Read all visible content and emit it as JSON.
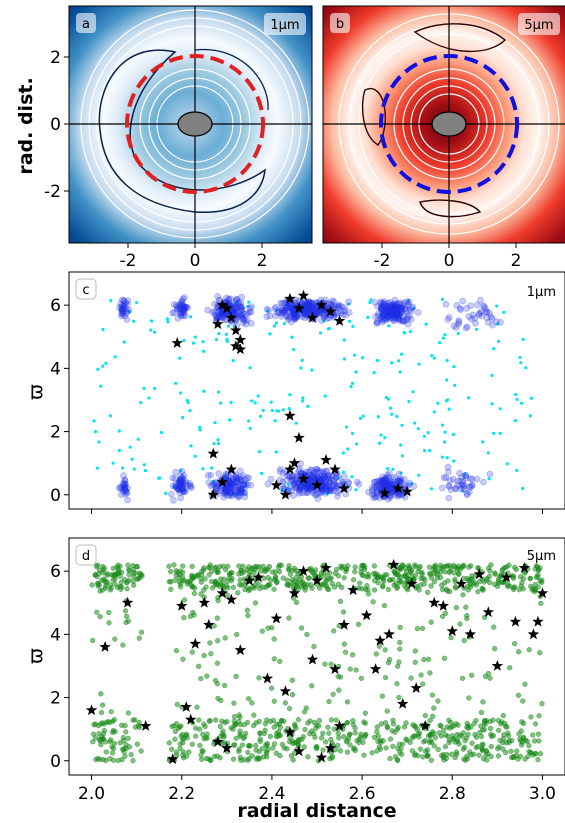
{
  "chart_data": [
    {
      "type": "heatmap",
      "panel_label": "a",
      "corner_label": "1μm",
      "colormap": "Blues",
      "ylabel": "rad. dist.",
      "xticks": [
        -2,
        0,
        2
      ],
      "yticks": [
        -2,
        0,
        2
      ],
      "xlim": [
        -3.8,
        3.8
      ],
      "ylim": [
        -3.5,
        3.5
      ],
      "dashed_circle": {
        "radius": 2.05,
        "color": "#e02020"
      },
      "center_ellipse_color": "#808080"
    },
    {
      "type": "heatmap",
      "panel_label": "b",
      "corner_label": "5μm",
      "colormap": "Reds",
      "xticks": [
        -2,
        0,
        2
      ],
      "xlim": [
        -3.8,
        3.8
      ],
      "ylim": [
        -3.5,
        3.5
      ],
      "dashed_circle": {
        "radius": 2.05,
        "color": "#1010e0"
      },
      "center_ellipse_color": "#808080"
    },
    {
      "type": "scatter",
      "panel_label": "c",
      "corner_label": "1μm",
      "ylabel": "ϖ",
      "xlim": [
        1.95,
        3.05
      ],
      "ylim": [
        -0.45,
        7.05
      ],
      "xticks": [
        2.0,
        2.2,
        2.4,
        2.6,
        2.8,
        3.0
      ],
      "yticks": [
        0,
        2,
        4,
        6
      ],
      "show_xtick_labels": false,
      "colors": {
        "dense": "#1f2ee8",
        "sparse": "#00e5ee",
        "stars": "#000000"
      },
      "stars": [
        [
          2.28,
          5.4
        ],
        [
          2.3,
          5.9
        ],
        [
          2.31,
          5.6
        ],
        [
          2.32,
          5.2
        ],
        [
          2.33,
          4.9
        ],
        [
          2.33,
          4.6
        ],
        [
          2.32,
          4.7
        ],
        [
          2.19,
          4.8
        ],
        [
          2.29,
          6.0
        ],
        [
          2.44,
          6.2
        ],
        [
          2.47,
          6.3
        ],
        [
          2.51,
          6.0
        ],
        [
          2.53,
          5.8
        ],
        [
          2.49,
          5.6
        ],
        [
          2.55,
          5.5
        ],
        [
          2.46,
          5.9
        ],
        [
          2.44,
          2.5
        ],
        [
          2.46,
          1.8
        ],
        [
          2.27,
          1.3
        ],
        [
          2.31,
          0.8
        ],
        [
          2.29,
          0.4
        ],
        [
          2.27,
          0.0
        ],
        [
          2.41,
          0.3
        ],
        [
          2.43,
          0.0
        ],
        [
          2.44,
          0.8
        ],
        [
          2.45,
          1.0
        ],
        [
          2.47,
          0.5
        ],
        [
          2.5,
          0.3
        ],
        [
          2.52,
          1.1
        ],
        [
          2.54,
          0.8
        ],
        [
          2.56,
          0.2
        ],
        [
          2.65,
          0.05
        ],
        [
          2.68,
          0.2
        ],
        [
          2.7,
          0.1
        ]
      ]
    },
    {
      "type": "scatter",
      "panel_label": "d",
      "corner_label": "5μm",
      "ylabel": "ϖ",
      "xlabel": "radial distance",
      "xlim": [
        1.95,
        3.05
      ],
      "ylim": [
        -0.45,
        7.05
      ],
      "xticks": [
        2.0,
        2.2,
        2.4,
        2.6,
        2.8,
        3.0
      ],
      "yticks": [
        0,
        2,
        4,
        6
      ],
      "colors": {
        "points": "#1a8a1a",
        "stars": "#000000"
      },
      "stars": [
        [
          2.0,
          1.6
        ],
        [
          2.03,
          3.6
        ],
        [
          2.08,
          5.0
        ],
        [
          2.12,
          1.1
        ],
        [
          2.18,
          0.05
        ],
        [
          2.2,
          4.9
        ],
        [
          2.21,
          1.7
        ],
        [
          2.22,
          1.3
        ],
        [
          2.23,
          3.7
        ],
        [
          2.25,
          5.0
        ],
        [
          2.26,
          4.3
        ],
        [
          2.28,
          0.6
        ],
        [
          2.29,
          5.3
        ],
        [
          2.3,
          0.4
        ],
        [
          2.31,
          5.1
        ],
        [
          2.33,
          3.5
        ],
        [
          2.35,
          5.7
        ],
        [
          2.37,
          5.8
        ],
        [
          2.39,
          2.6
        ],
        [
          2.41,
          4.5
        ],
        [
          2.43,
          2.2
        ],
        [
          2.44,
          0.9
        ],
        [
          2.45,
          5.3
        ],
        [
          2.46,
          0.3
        ],
        [
          2.47,
          6.0
        ],
        [
          2.49,
          3.2
        ],
        [
          2.5,
          5.7
        ],
        [
          2.51,
          0.1
        ],
        [
          2.52,
          6.1
        ],
        [
          2.53,
          0.4
        ],
        [
          2.54,
          2.9
        ],
        [
          2.55,
          1.1
        ],
        [
          2.56,
          4.3
        ],
        [
          2.58,
          5.4
        ],
        [
          2.61,
          4.6
        ],
        [
          2.63,
          2.9
        ],
        [
          2.64,
          3.8
        ],
        [
          2.66,
          4.0
        ],
        [
          2.67,
          6.2
        ],
        [
          2.69,
          1.8
        ],
        [
          2.71,
          5.6
        ],
        [
          2.72,
          2.3
        ],
        [
          2.74,
          1.1
        ],
        [
          2.76,
          5.0
        ],
        [
          2.78,
          4.9
        ],
        [
          2.8,
          4.1
        ],
        [
          2.82,
          5.6
        ],
        [
          2.84,
          4.0
        ],
        [
          2.86,
          5.9
        ],
        [
          2.88,
          4.7
        ],
        [
          2.9,
          3.0
        ],
        [
          2.92,
          5.8
        ],
        [
          2.94,
          4.4
        ],
        [
          2.96,
          6.1
        ],
        [
          2.98,
          4.0
        ],
        [
          2.99,
          4.4
        ],
        [
          3.0,
          5.3
        ]
      ]
    }
  ]
}
